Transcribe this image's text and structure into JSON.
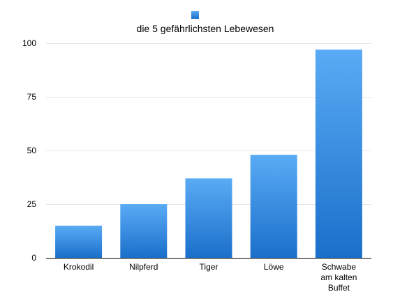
{
  "chart_data": {
    "type": "bar",
    "title": "die 5 gefährlichsten Lebewesen",
    "categories": [
      "Krokodil",
      "Nilpferd",
      "Tiger",
      "Löwe",
      "Schwabe am kalten Buffet"
    ],
    "category_lines": [
      [
        "Krokodil"
      ],
      [
        "Nilpferd"
      ],
      [
        "Tiger"
      ],
      [
        "Löwe"
      ],
      [
        "Schwabe",
        "am kalten",
        "Buffet"
      ]
    ],
    "values": [
      15,
      25,
      37,
      48,
      97
    ],
    "ylim": [
      0,
      100
    ],
    "yticks": [
      0,
      25,
      50,
      75,
      100
    ],
    "grid": true,
    "legend": "top",
    "bar_color_top": "#5aabf5",
    "bar_color_bottom": "#1a6fca"
  }
}
